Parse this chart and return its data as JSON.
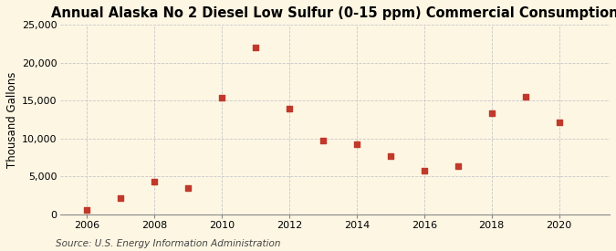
{
  "title": "Annual Alaska No 2 Diesel Low Sulfur (0-15 ppm) Commercial Consumption",
  "ylabel": "Thousand Gallons",
  "source": "Source: U.S. Energy Information Administration",
  "years": [
    2006,
    2007,
    2008,
    2009,
    2010,
    2011,
    2012,
    2013,
    2014,
    2015,
    2016,
    2017,
    2018,
    2019,
    2020
  ],
  "values": [
    500,
    2100,
    4300,
    3400,
    15400,
    22000,
    13900,
    9700,
    9200,
    7700,
    5700,
    6400,
    13300,
    15500,
    12100
  ],
  "marker_color": "#c0392b",
  "marker": "s",
  "marker_size": 18,
  "xlim": [
    2005.2,
    2021.5
  ],
  "ylim": [
    0,
    25000
  ],
  "yticks": [
    0,
    5000,
    10000,
    15000,
    20000,
    25000
  ],
  "xticks": [
    2006,
    2008,
    2010,
    2012,
    2014,
    2016,
    2018,
    2020
  ],
  "background_color": "#fdf6e3",
  "plot_bg_color": "#fdf6e3",
  "grid_color": "#c8c8c8",
  "title_fontsize": 10.5,
  "label_fontsize": 8.5,
  "tick_fontsize": 8,
  "source_fontsize": 7.5
}
